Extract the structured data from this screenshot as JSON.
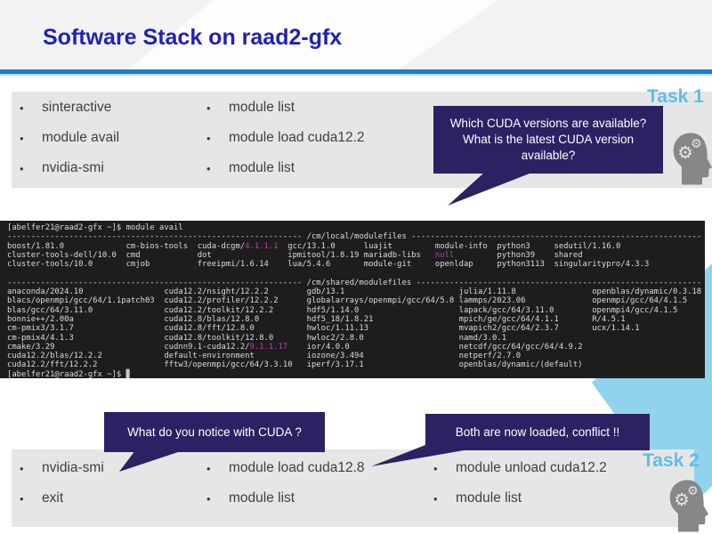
{
  "colors": {
    "page-bg": "#ffffff",
    "header-bg": "#f2f2f2",
    "title-blue": "#2121b5",
    "rule-blue": "#1d7fc4",
    "rule-light": "#b5d9ef",
    "band-gray": "#e6e6e6",
    "text-dark": "#3f3f3f",
    "task-blue": "#5fbde9",
    "bubble-navy": "#2a2263",
    "bubble-text": "#ffffff",
    "term-bg": "#1d1d1d",
    "term-fg": "#dcdcda",
    "term-magenta": "#bb3fbb",
    "term-cursor": "#c8c8c8",
    "cyan": "#90d3ed",
    "head-gray": "#878787"
  },
  "glyphs": {
    "bullet": "•",
    "gear": "⚙"
  },
  "header": {
    "title": "Software Stack on raad2-gfx"
  },
  "task1": {
    "label": "Task 1",
    "bubble": "Which CUDA versions are available? What is the latest CUDA version available?",
    "commands_left": [
      "sinteractive",
      "module avail",
      "nvidia-smi"
    ],
    "commands_right": [
      "module list",
      "module load cuda12.2",
      "module list"
    ]
  },
  "task2": {
    "label": "Task 2",
    "bubble_left": "What do you notice with CUDA ?",
    "bubble_right": "Both are now loaded, conflict !!",
    "commands_col1": [
      "nvidia-smi",
      "exit"
    ],
    "commands_col2": [
      "module load cuda12.8",
      "module list"
    ],
    "commands_col3": [
      "module unload cuda12.2",
      "module list"
    ]
  },
  "terminal": {
    "lines": [
      [
        {
          "t": "[abelfer21@raad2-gfx ~]$ module avail"
        }
      ],
      [
        {
          "t": "-------------------------------------------------------------- /cm/local/modulefiles -------------------------------------------------------------"
        }
      ],
      [
        {
          "t": "boost/1.81.0             cm-bios-tools  cuda-dcgm/"
        },
        {
          "t": "4.1.1.1",
          "c": "m"
        },
        {
          "t": "  gcc/13.1.0      luajit         module-info  python3     sedutil/1.16.0"
        }
      ],
      [
        {
          "t": "cluster-tools-dell/10.0  cmd            dot                ipmitool/1.8.19 mariadb-libs   "
        },
        {
          "t": "null",
          "c": "m"
        },
        {
          "t": "         python39    shared"
        }
      ],
      [
        {
          "t": "cluster-tools/10.0       cmjob          freeipmi/1.6.14    lua/5.4.6       module-git     openldap     python3113  singularitypro/4.3.3"
        }
      ],
      [
        {
          "t": " "
        }
      ],
      [
        {
          "t": "-------------------------------------------------------------- /cm/shared/modulefiles ------------------------------------------------------------"
        }
      ],
      [
        {
          "t": "anaconda/2024.10                 cuda12.2/nsight/12.2.2        gdb/13.1                        julia/1.11.8                openblas/dynamic/0.3.18"
        }
      ],
      [
        {
          "t": "blacs/openmpi/gcc/64/1.1patch03  cuda12.2/profiler/12.2.2      globalarrays/openmpi/gcc/64/5.8 lammps/2023.06              openmpi/gcc/64/4.1.5"
        }
      ],
      [
        {
          "t": "blas/gcc/64/3.11.0               cuda12.2/toolkit/12.2.2       hdf5/1.14.0                     lapack/gcc/64/3.11.0        openmpi4/gcc/4.1.5"
        }
      ],
      [
        {
          "t": "bonnie++/2.00a                   cuda12.8/blas/12.8.0          hdf5_18/1.8.21                  mpich/ge/gcc/64/4.1.1       R/4.5.1"
        }
      ],
      [
        {
          "t": "cm-pmix3/3.1.7                   cuda12.8/fft/12.8.0           hwloc/1.11.13                   mvapich2/gcc/64/2.3.7       ucx/1.14.1"
        }
      ],
      [
        {
          "t": "cm-pmix4/4.1.3                   cuda12.8/toolkit/12.8.0       hwloc2/2.8.0                    namd/3.0.1"
        }
      ],
      [
        {
          "t": "cmake/3.29                       cudnn9.1-cuda12.2/"
        },
        {
          "t": "9.1.1.17",
          "c": "m"
        },
        {
          "t": "    ior/4.0.0                       netcdf/gcc/64/gcc/64/4.9.2"
        }
      ],
      [
        {
          "t": "cuda12.2/blas/12.2.2             default-environment           iozone/3.494                    netperf/2.7.0"
        }
      ],
      [
        {
          "t": "cuda12.2/fft/12.2.2              fftw3/openmpi/gcc/64/3.3.10   iperf/3.17.1                    openblas/dynamic/(default)"
        }
      ],
      [
        {
          "t": "[abelfer21@raad2-gfx ~]$ "
        },
        {
          "t": "▊",
          "c": "cur"
        }
      ]
    ]
  }
}
